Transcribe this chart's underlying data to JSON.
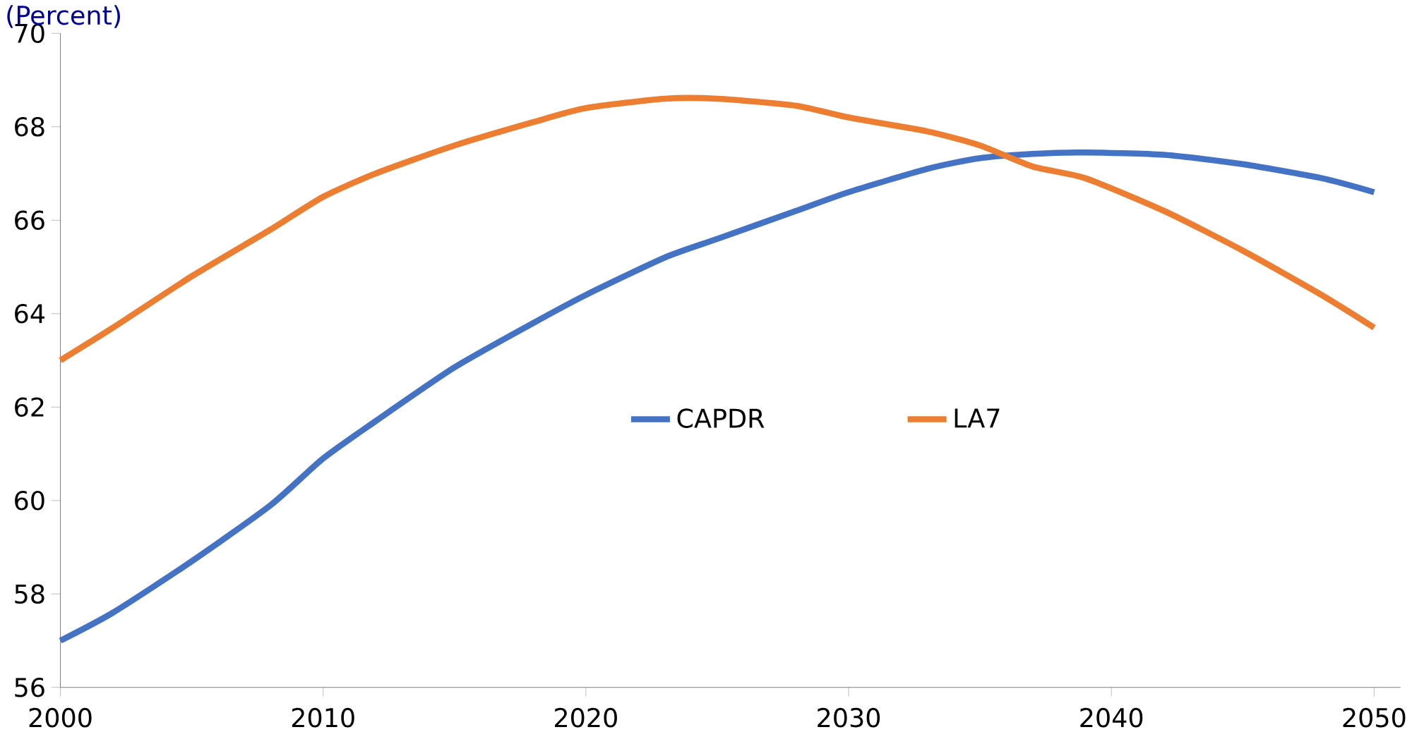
{
  "chart_data": {
    "type": "line",
    "ylabel": "(Percent)",
    "x": [
      2000,
      2002,
      2005,
      2008,
      2010,
      2012,
      2015,
      2018,
      2020,
      2023,
      2025,
      2028,
      2030,
      2033,
      2035,
      2037,
      2039,
      2042,
      2045,
      2048,
      2050
    ],
    "series": [
      {
        "name": "CAPDR",
        "color": "#4472c4",
        "values": [
          57.0,
          57.6,
          58.7,
          59.9,
          60.9,
          61.7,
          62.85,
          63.8,
          64.4,
          65.2,
          65.6,
          66.2,
          66.6,
          67.1,
          67.33,
          67.42,
          67.45,
          67.4,
          67.2,
          66.9,
          66.6
        ]
      },
      {
        "name": "LA7",
        "color": "#ed7d31",
        "values": [
          63.0,
          63.7,
          64.8,
          65.8,
          66.5,
          67.0,
          67.6,
          68.1,
          68.4,
          68.6,
          68.6,
          68.45,
          68.2,
          67.9,
          67.6,
          67.15,
          66.9,
          66.2,
          65.35,
          64.4,
          63.7
        ]
      }
    ],
    "xlim": [
      2000,
      2051
    ],
    "xticks": [
      2000,
      2010,
      2020,
      2030,
      2040,
      2050
    ],
    "ylim": [
      56,
      70
    ],
    "yticks": [
      56,
      58,
      60,
      62,
      64,
      66,
      68,
      70
    ],
    "grid": false,
    "legend": "right",
    "marker": "none",
    "line_style": "solid"
  }
}
